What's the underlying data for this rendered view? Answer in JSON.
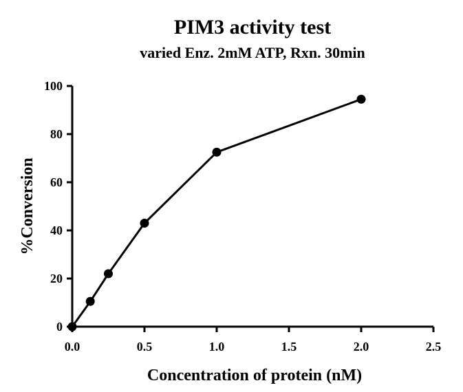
{
  "chart_data": {
    "type": "line",
    "title": "PIM3 activity test",
    "subtitle": "varied Enz. 2mM ATP, Rxn. 30min",
    "xlabel": "Concentration of protein (nM)",
    "ylabel": "%Conversion",
    "xlim": [
      0,
      2.5
    ],
    "ylim": [
      0,
      100
    ],
    "x_ticks": [
      0.0,
      0.5,
      1.0,
      1.5,
      2.0,
      2.5
    ],
    "x_tick_labels": [
      "0.0",
      "0.5",
      "1.0",
      "1.5",
      "2.0",
      "2.5"
    ],
    "y_ticks": [
      0,
      20,
      40,
      60,
      80,
      100
    ],
    "y_tick_labels": [
      "0",
      "20",
      "40",
      "60",
      "80",
      "100"
    ],
    "grid": false,
    "series": [
      {
        "x": [
          0,
          0.125,
          0.25,
          0.5,
          1.0,
          2.0
        ],
        "y": [
          0,
          10.5,
          22,
          43,
          72.5,
          94.5
        ],
        "color": "#000000",
        "marker": "circle"
      }
    ]
  }
}
